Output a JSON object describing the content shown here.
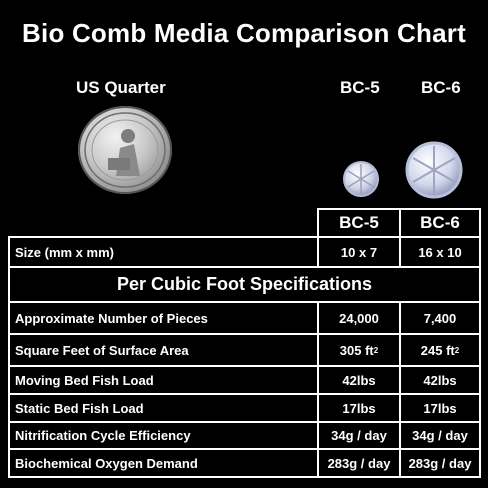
{
  "title": "Bio Comb Media Comparison Chart",
  "labels": {
    "quarter": "US Quarter",
    "bc5": "BC-5",
    "bc6": "BC-6"
  },
  "table": {
    "header": {
      "bc5": "BC-5",
      "bc6": "BC-6"
    },
    "size_row": {
      "label": "Size (mm x mm)",
      "bc5": "10 x 7",
      "bc6": "16 x 10"
    },
    "section_title": "Per Cubic Foot Specifications",
    "rows": [
      {
        "label": "Approximate Number of Pieces",
        "bc5": "24,000",
        "bc6": "7,400"
      },
      {
        "label": "Square Feet of Surface Area",
        "bc5": "305 ft",
        "bc5_sup": "2",
        "bc6": "245 ft",
        "bc6_sup": "2"
      },
      {
        "label": "Moving Bed Fish Load",
        "bc5": "42lbs",
        "bc6": "42lbs"
      },
      {
        "label": "Static Bed Fish Load",
        "bc5": "17lbs",
        "bc6": "17lbs"
      },
      {
        "label": "Nitrification Cycle Efficiency",
        "bc5": "34g / day",
        "bc6": "34g / day"
      },
      {
        "label": "Biochemical Oxygen Demand",
        "bc5": "283g / day",
        "bc6": "283g / day"
      }
    ]
  },
  "colors": {
    "background": "#000000",
    "text": "#ffffff",
    "border": "#ffffff"
  }
}
